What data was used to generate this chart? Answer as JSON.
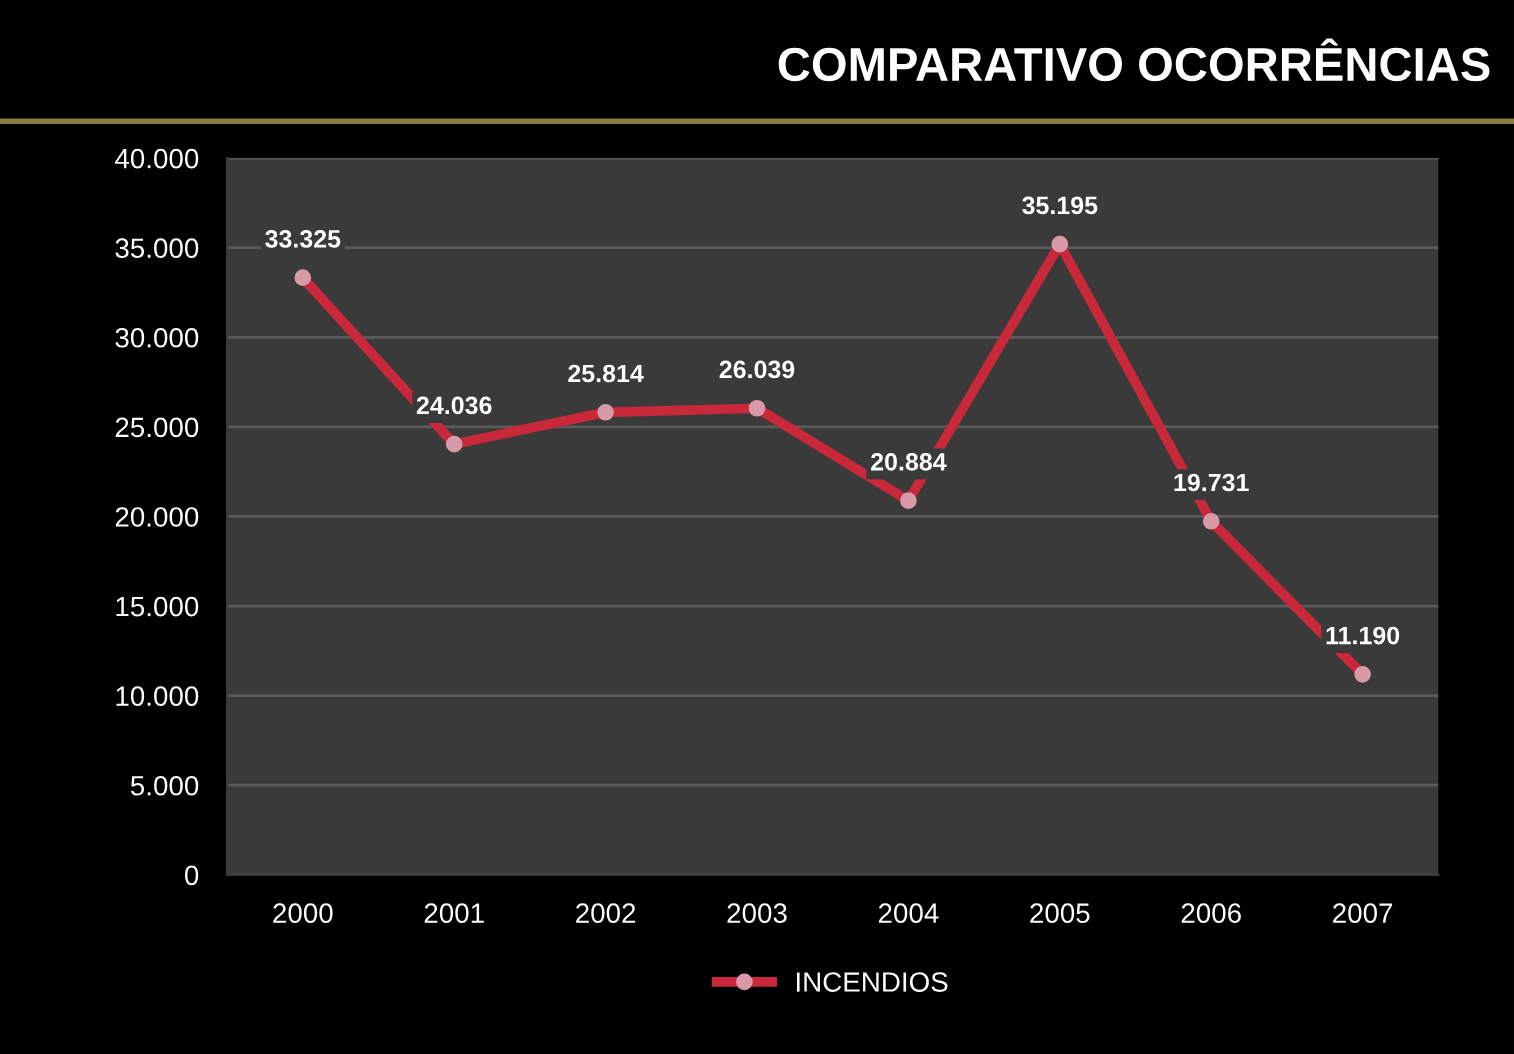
{
  "chart_data": {
    "type": "line",
    "title": "COMPARATIVO OCORRÊNCIAS",
    "categories": [
      "2000",
      "2001",
      "2002",
      "2003",
      "2004",
      "2005",
      "2006",
      "2007"
    ],
    "series": [
      {
        "name": "INCENDIOS",
        "color": "#c8283a",
        "values": [
          33325,
          24036,
          25814,
          26039,
          20884,
          35195,
          19731,
          11190
        ],
        "value_labels": [
          "33.325",
          "24.036",
          "25.814",
          "26.039",
          "20.884",
          "35.195",
          "19.731",
          "11.190"
        ]
      }
    ],
    "ylim": [
      0,
      40000
    ],
    "yticks": [
      {
        "value": 0,
        "label": "0"
      },
      {
        "value": 5000,
        "label": "5.000"
      },
      {
        "value": 10000,
        "label": "10.000"
      },
      {
        "value": 15000,
        "label": "15.000"
      },
      {
        "value": 20000,
        "label": "20.000"
      },
      {
        "value": 25000,
        "label": "25.000"
      },
      {
        "value": 30000,
        "label": "30.000"
      },
      {
        "value": 35000,
        "label": "35.000"
      },
      {
        "value": 40000,
        "label": "40.000"
      }
    ],
    "grid": "y",
    "legend": "bottom",
    "marker": "circle",
    "line_style": "solid"
  }
}
